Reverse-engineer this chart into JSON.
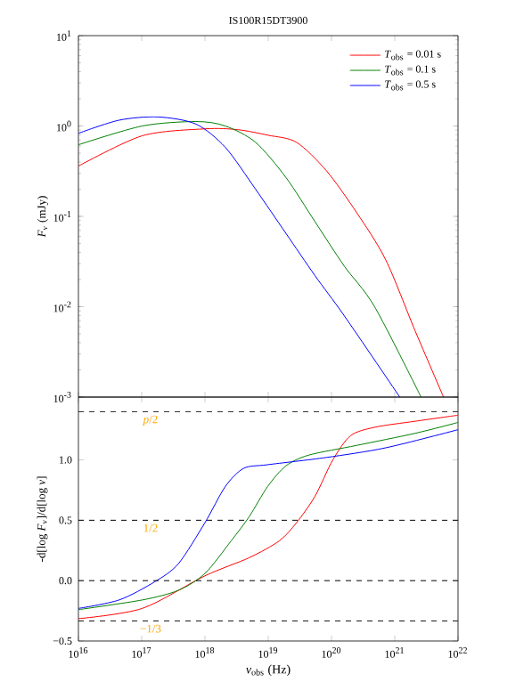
{
  "chart_data": [
    {
      "type": "line",
      "title": "IS100R15DT3900",
      "ylabel": "*F*$_{ν}$ (mJy)",
      "log": "xy",
      "tick_labels": "y",
      "legend": "top right",
      "xlim": [
        1e+16,
        1e+22
      ],
      "ylim": [
        0.001,
        10
      ],
      "xticks": [
        {
          "value": 1e+16,
          "label": null
        },
        {
          "value": 1e+17,
          "label": null
        },
        {
          "value": 1e+18,
          "label": null
        },
        {
          "value": 1e+19,
          "label": null
        },
        {
          "value": 1e+20,
          "label": null
        },
        {
          "value": 1e+21,
          "label": null
        },
        {
          "value": 1e+22,
          "label": null
        }
      ],
      "yticks": [
        {
          "value": 0.001,
          "label": "10$^{-3}$"
        },
        {
          "value": 0.01,
          "label": "10$^{-2}$"
        },
        {
          "value": 0.1,
          "label": "10$^{-1}$"
        },
        {
          "value": 1,
          "label": "10$^{0}$"
        },
        {
          "value": 10,
          "label": "10$^{1}$"
        }
      ],
      "series": [
        {
          "name": "*T*$_{obs}$ = 0.01 s",
          "color": "#ff0000",
          "x": [
            1e+16,
            1.02e+17,
            1e+18,
            3.3e+18,
            1e+19,
            2.8e+19,
            8.3e+19,
            2.5e+20,
            7.2e+20,
            2.1e+21,
            5.9e+21
          ],
          "values": [
            0.36,
            0.78,
            0.93,
            0.91,
            0.79,
            0.66,
            0.32,
            0.11,
            0.033,
            0.0054,
            0.001
          ]
        },
        {
          "name": "*T*$_{obs}$ = 0.1 s",
          "color": "#008000",
          "x": [
            1e+16,
            1.02e+17,
            7.2e+17,
            2.1e+18,
            6.3e+18,
            1.9e+19,
            5.5e+19,
            1.6e+20,
            4.8e+20,
            2.6e+21
          ],
          "values": [
            0.62,
            1.0,
            1.12,
            1.0,
            0.66,
            0.27,
            0.087,
            0.028,
            0.01,
            0.001
          ]
        },
        {
          "name": "*T*$_{obs}$ = 0.5 s",
          "color": "#0000ff",
          "x": [
            1e+16,
            4.4e+16,
            1.8e+17,
            7.2e+17,
            2.1e+18,
            6.3e+18,
            1.9e+19,
            5.5e+19,
            1.6e+20,
            1.2e+21
          ],
          "values": [
            0.83,
            1.16,
            1.26,
            1.05,
            0.58,
            0.2,
            0.065,
            0.022,
            0.0079,
            0.001
          ]
        }
      ]
    },
    {
      "type": "line",
      "xlabel": "*ν*$_{obs}$ (Hz)",
      "ylabel": "-d[log *F*$_{ν}$]/d[log *ν*]",
      "log": "x",
      "xlim": [
        1e+16,
        1e+22
      ],
      "ylim": [
        -0.5,
        1.52
      ],
      "xticks": [
        {
          "value": 1e+16,
          "label": "10$^{16}$"
        },
        {
          "value": 1e+17,
          "label": "10$^{17}$"
        },
        {
          "value": 1e+18,
          "label": "10$^{18}$"
        },
        {
          "value": 1e+19,
          "label": "10$^{19}$"
        },
        {
          "value": 1e+20,
          "label": "10$^{20}$"
        },
        {
          "value": 1e+21,
          "label": "10$^{21}$"
        },
        {
          "value": 1e+22,
          "label": "10$^{22}$"
        }
      ],
      "yticks": [
        {
          "value": -0.5,
          "label": "−0.5"
        },
        {
          "value": 0,
          "label": "0.0"
        },
        {
          "value": 0.5,
          "label": "0.5"
        },
        {
          "value": 1,
          "label": "1.0"
        }
      ],
      "ref_lines": [
        {
          "axis": "y",
          "value": 1.4,
          "label": "*p*/2"
        },
        {
          "axis": "y",
          "value": 0.5,
          "label": "1/2"
        },
        {
          "axis": "y",
          "value": 0,
          "label": null
        },
        {
          "axis": "y",
          "value": -0.333,
          "label": "−1/3"
        }
      ],
      "series": [
        {
          "color": "#ff0000",
          "x": [
            1e+16,
            1.02e+17,
            1e+18,
            5e+18,
            1.5e+19,
            2.8e+19,
            5.5e+19,
            1.05e+20,
            2e+20,
            4.8e+20,
            2.1e+21,
            1e+22
          ],
          "values": [
            -0.315,
            -0.23,
            0.04,
            0.19,
            0.33,
            0.48,
            0.7,
            1.0,
            1.2,
            1.27,
            1.32,
            1.37
          ]
        },
        {
          "color": "#008000",
          "x": [
            1e+16,
            1.02e+17,
            3.8e+17,
            1e+18,
            2.6e+18,
            5e+18,
            9.8e+18,
            1.9e+19,
            4.4e+19,
            2.5e+20,
            2.1e+21,
            1e+22
          ],
          "values": [
            -0.24,
            -0.16,
            -0.08,
            0.06,
            0.33,
            0.53,
            0.78,
            0.95,
            1.04,
            1.12,
            1.22,
            1.31
          ]
        },
        {
          "color": "#0000ff",
          "x": [
            1e+16,
            4.4e+16,
            1.6e+17,
            3.8e+17,
            1e+18,
            2.1e+18,
            4.1e+18,
            9.8e+18,
            8.3e+19,
            7.2e+20,
            1e+22
          ],
          "values": [
            -0.23,
            -0.16,
            -0.01,
            0.14,
            0.48,
            0.78,
            0.93,
            0.96,
            1.02,
            1.1,
            1.25
          ]
        }
      ]
    }
  ]
}
